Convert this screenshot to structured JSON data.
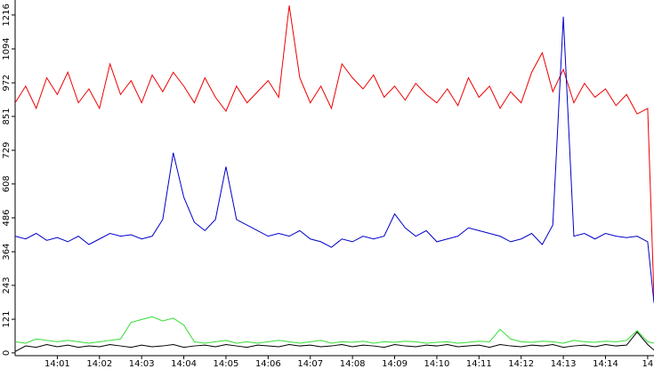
{
  "chart_data": {
    "type": "line",
    "x": [
      0,
      0.25,
      0.5,
      0.75,
      1,
      1.25,
      1.5,
      1.75,
      2,
      2.25,
      2.5,
      2.75,
      3,
      3.25,
      3.5,
      3.75,
      4,
      4.25,
      4.5,
      4.75,
      5,
      5.25,
      5.5,
      5.75,
      6,
      6.25,
      6.5,
      6.75,
      7,
      7.25,
      7.5,
      7.75,
      8,
      8.25,
      8.5,
      8.75,
      9,
      9.25,
      9.5,
      9.75,
      10,
      10.25,
      10.5,
      10.75,
      11,
      11.25,
      11.5,
      11.75,
      12,
      12.25,
      12.5,
      12.75,
      13,
      13.25,
      13.5,
      13.75,
      14,
      14.25,
      14.5,
      14.75,
      15,
      15.15
    ],
    "series": [
      {
        "color": "#ee0000",
        "values": [
          900,
          960,
          880,
          990,
          930,
          1010,
          900,
          950,
          880,
          1040,
          930,
          980,
          900,
          1000,
          940,
          1010,
          960,
          900,
          990,
          920,
          870,
          960,
          900,
          940,
          980,
          920,
          1250,
          990,
          900,
          960,
          880,
          1040,
          990,
          950,
          1000,
          920,
          960,
          910,
          970,
          930,
          900,
          950,
          890,
          990,
          920,
          960,
          880,
          940,
          900,
          1010,
          1080,
          940,
          1020,
          900,
          970,
          920,
          950,
          890,
          930,
          860,
          880,
          200
        ]
      },
      {
        "color": "#0000cc",
        "values": [
          420,
          410,
          430,
          405,
          415,
          400,
          420,
          390,
          410,
          430,
          420,
          425,
          410,
          420,
          480,
          720,
          560,
          470,
          440,
          480,
          670,
          480,
          460,
          440,
          420,
          430,
          420,
          440,
          410,
          400,
          380,
          410,
          400,
          420,
          410,
          420,
          500,
          450,
          420,
          440,
          400,
          410,
          420,
          450,
          440,
          430,
          420,
          400,
          410,
          430,
          390,
          460,
          1210,
          420,
          430,
          410,
          430,
          420,
          415,
          420,
          400,
          180
        ]
      },
      {
        "color": "#33dd33",
        "values": [
          40,
          35,
          50,
          45,
          40,
          45,
          40,
          35,
          40,
          45,
          50,
          110,
          120,
          130,
          115,
          125,
          100,
          40,
          35,
          40,
          45,
          35,
          40,
          35,
          40,
          45,
          40,
          35,
          40,
          45,
          35,
          40,
          38,
          42,
          35,
          40,
          38,
          42,
          40,
          35,
          38,
          40,
          35,
          38,
          42,
          40,
          85,
          50,
          40,
          38,
          42,
          40,
          35,
          45,
          40,
          38,
          42,
          40,
          45,
          80,
          40,
          35
        ]
      },
      {
        "color": "#000000",
        "values": [
          5,
          25,
          20,
          30,
          22,
          28,
          20,
          25,
          22,
          30,
          25,
          20,
          28,
          22,
          25,
          30,
          20,
          25,
          28,
          22,
          30,
          25,
          20,
          28,
          25,
          22,
          30,
          25,
          28,
          22,
          25,
          30,
          22,
          28,
          25,
          20,
          30,
          25,
          22,
          28,
          25,
          30,
          22,
          25,
          28,
          20,
          30,
          25,
          22,
          28,
          25,
          30,
          20,
          25,
          28,
          22,
          30,
          25,
          28,
          75,
          30,
          10
        ]
      }
    ],
    "xlim": [
      0,
      15.15
    ],
    "ylim": [
      -10,
      1270
    ],
    "xticks": [
      {
        "value": 1,
        "label": "14:01"
      },
      {
        "value": 2,
        "label": "14:02"
      },
      {
        "value": 3,
        "label": "14:03"
      },
      {
        "value": 4,
        "label": "14:04"
      },
      {
        "value": 5,
        "label": "14:05"
      },
      {
        "value": 6,
        "label": "14:06"
      },
      {
        "value": 7,
        "label": "14:07"
      },
      {
        "value": 8,
        "label": "14:08"
      },
      {
        "value": 9,
        "label": "14:09"
      },
      {
        "value": 10,
        "label": "14:10"
      },
      {
        "value": 11,
        "label": "14:11"
      },
      {
        "value": 12,
        "label": "14:12"
      },
      {
        "value": 13,
        "label": "14:13"
      },
      {
        "value": 14,
        "label": "14:14"
      },
      {
        "value": 15,
        "label": "14"
      }
    ],
    "yticks": [
      0,
      121,
      243,
      364,
      486,
      608,
      729,
      851,
      972,
      1094,
      1216
    ]
  }
}
